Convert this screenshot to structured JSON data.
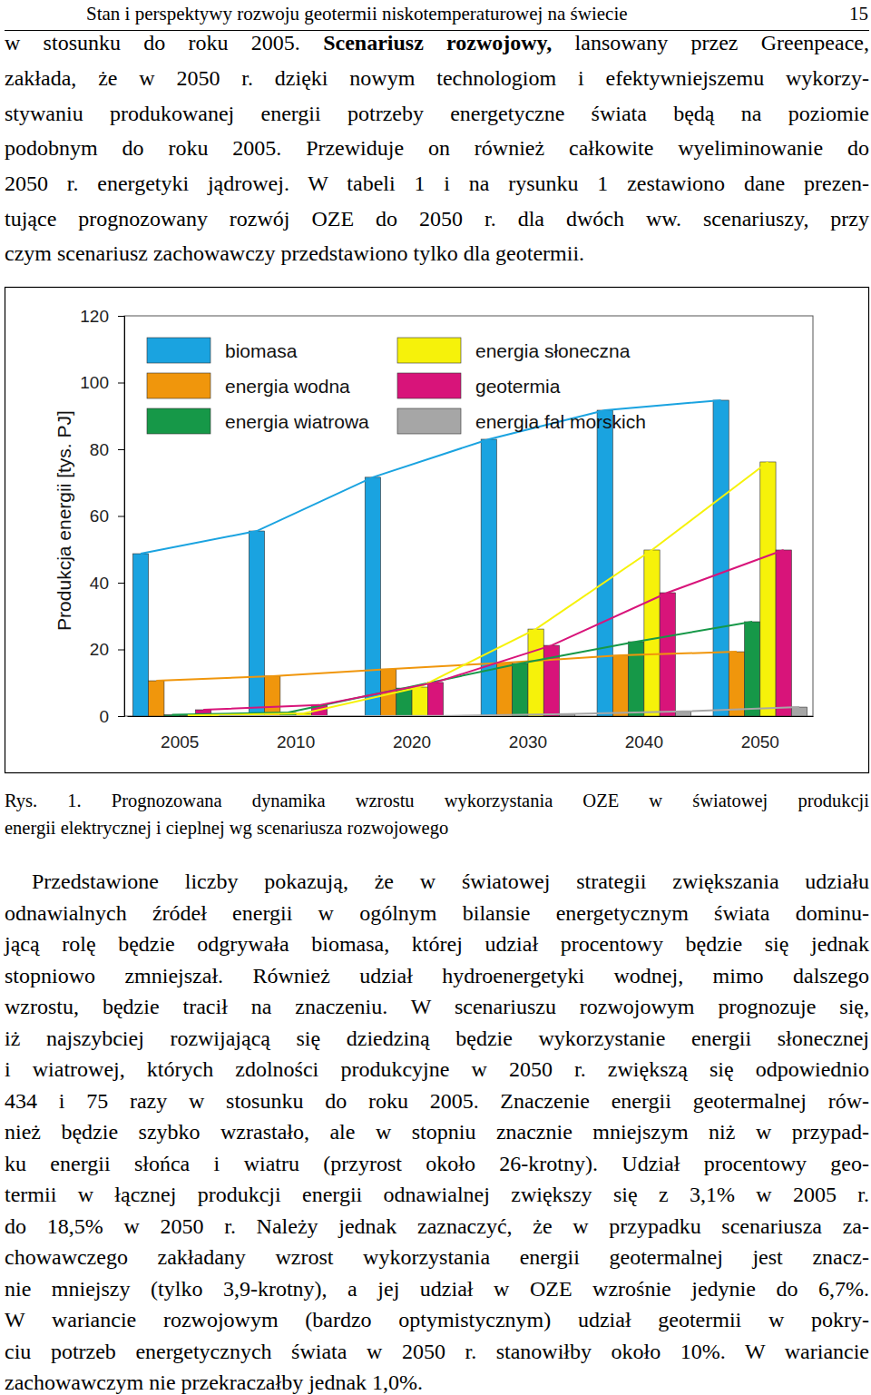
{
  "header": {
    "title": "Stan i perspektywy rozwoju geotermii niskotemperaturowej na świecie",
    "page": "15"
  },
  "text_before": {
    "lines": [
      {
        "runs": [
          {
            "text": "w stosunku do roku 2005. "
          },
          {
            "text": "Scenariusz rozwojowy,",
            "bold": true
          },
          {
            "text": " lansowany przez Greenpeace,"
          }
        ]
      },
      "zakłada, że w 2050 r. dzięki nowym technologiom i efektywniejszemu wykorzy-",
      "stywaniu produkowanej energii potrzeby energetyczne świata będą na poziomie",
      "podobnym do roku 2005. Przewiduje on również całkowite wyeliminowanie do",
      "2050 r. energetyki jądrowej. W tabeli 1 i na rysunku 1 zestawiono dane prezen-",
      "tujące prognozowany rozwój OZE do 2050 r. dla dwóch ww. scenariuszy, przy",
      "czym scenariusz zachowawczy przedstawiono tylko dla geotermii."
    ]
  },
  "chart_data": {
    "type": "bar",
    "y_label": "Produkcja energii [tys. PJ]",
    "categories": [
      "2005",
      "2010",
      "2020",
      "2030",
      "2040",
      "2050"
    ],
    "series": [
      {
        "name": "biomasa",
        "color": "#1aa3e0",
        "line_style": "solid",
        "values": [
          48.7,
          55.5,
          71.6,
          83,
          91.7,
          94.7
        ]
      },
      {
        "name": "energia wodna",
        "color": "#f0960c",
        "line_style": "solid",
        "values": [
          10.6,
          12,
          14.1,
          16,
          18.2,
          19.3
        ]
      },
      {
        "name": "energia wiatrowa",
        "color": "#169848",
        "line_style": "solid",
        "values": [
          0.4,
          1.1,
          8.4,
          15.8,
          22.3,
          28.3
        ]
      },
      {
        "name": "energia słoneczna",
        "color": "#f6f20a",
        "line_style": "solid",
        "values": [
          0.2,
          0.8,
          8.7,
          26.1,
          49.8,
          76.2
        ]
      },
      {
        "name": "geotermia",
        "color": "#d8147a",
        "line_style": "solid",
        "values": [
          1.9,
          3.3,
          10.1,
          21.2,
          37,
          49.8
        ]
      },
      {
        "name": "energia fal morskich",
        "color": "#a6a6a6",
        "line_style": "solid",
        "values": [
          0,
          0,
          0.1,
          0.6,
          1.4,
          2.7
        ]
      }
    ],
    "ylim": [
      0,
      120
    ],
    "yticks": [
      0,
      20,
      40,
      60,
      80,
      100,
      120
    ],
    "grid": false,
    "legend": "top-left"
  },
  "caption": {
    "lines": [
      "Rys. 1. Prognozowana dynamika wzrostu wykorzystania OZE w światowej produkcji",
      "energii elektrycznej i cieplnej wg scenariusza rozwojowego"
    ]
  },
  "text_after": {
    "lines": [
      "Przedstawione liczby pokazują, że w światowej strategii zwiększania udziału",
      "odnawialnych źródeł energii w ogólnym bilansie energetycznym świata dominu-",
      "jącą rolę będzie odgrywała biomasa, której udział procentowy będzie się jednak",
      "stopniowo zmniejszał. Również udział hydroenergetyki wodnej, mimo dalszego",
      "wzrostu, będzie tracił na znaczeniu. W scenariuszu rozwojowym prognozuje się,",
      "iż najszybciej rozwijającą się dziedziną będzie wykorzystanie energii słonecznej",
      "i wiatrowej, których zdolności produkcyjne w 2050 r. zwiększą się odpowiednio",
      "434 i 75 razy w stosunku do roku 2005. Znaczenie energii geotermalnej rów-",
      "nież będzie szybko wzrastało, ale w stopniu znacznie mniejszym niż w przypad-",
      "ku energii słońca i wiatru (przyrost około 26-krotny). Udział procentowy geo-",
      "termii w łącznej produkcji energii odnawialnej zwiększy się z 3,1% w 2005 r.",
      "do 18,5% w 2050 r. Należy jednak zaznaczyć, że w przypadku scenariusza za-",
      "chowawczego zakładany wzrost wykorzystania energii geotermalnej jest znacz-",
      "nie mniejszy (tylko 3,9-krotny), a jej udział w OZE wzrośnie jedynie do 6,7%.",
      "W wariancie rozwojowym (bardzo optymistycznym) udział geotermii w pokry-",
      "ciu potrzeb energetycznych świata w 2050 r. stanowiłby około 10%. W wariancie",
      "zachowawczym nie przekraczałby jednak 1,0%."
    ]
  }
}
